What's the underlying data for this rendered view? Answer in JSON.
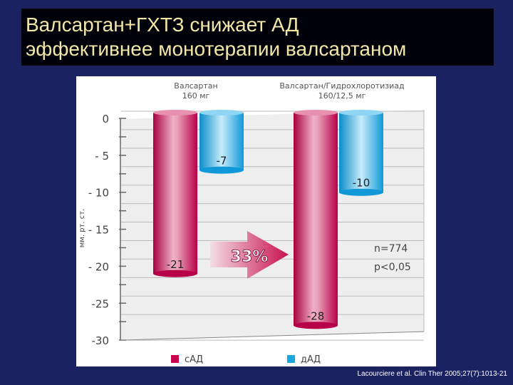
{
  "slide": {
    "title_line1": "Валсартан+ГХТЗ снижает АД",
    "title_line2": "эффективнее монотерапии валсартаном",
    "citation": "Lacourciere et al. Clin Ther 2005;27(7):1013-21"
  },
  "chart_data": {
    "type": "bar",
    "ylabel": "мм. рт. ст.",
    "ylim": [
      -30,
      0
    ],
    "yticks": [
      "0",
      "- 5",
      "- 10",
      "- 15",
      "- 20",
      "-25",
      "-30"
    ],
    "ytick_values": [
      0,
      -5,
      -10,
      -15,
      -20,
      -25,
      -30
    ],
    "categories": [
      "Валсартан\n160 мг",
      "Валсартан/Гидрохлоротизиад\n160/12,5 мг"
    ],
    "category_lines": [
      [
        "Валсартан",
        "160 мг"
      ],
      [
        "Валсартан/Гидрохлоротизиад",
        "160/12,5 мг"
      ]
    ],
    "series": [
      {
        "name": "сАД",
        "values": [
          -21,
          -28
        ],
        "labels": [
          "-21",
          "-28"
        ],
        "color": "#c8004e"
      },
      {
        "name": "дАД",
        "values": [
          -7,
          -10
        ],
        "labels": [
          "-7",
          "-10"
        ],
        "color": "#1aa8e0"
      }
    ],
    "annotations": {
      "arrow_text": "33%",
      "n": "n=774",
      "p": "p<0,05"
    },
    "grid": true,
    "legend": "bottom"
  }
}
